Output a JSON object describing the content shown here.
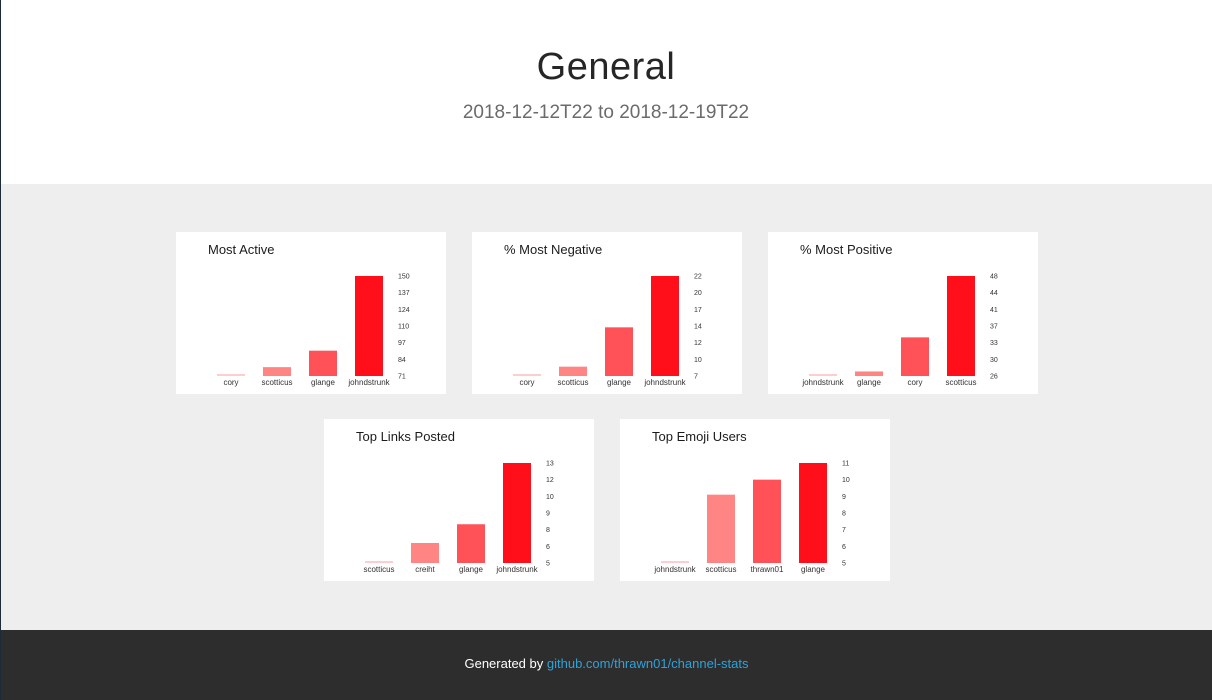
{
  "header": {
    "title": "General",
    "date_range": "2018-12-12T22 to 2018-12-19T22"
  },
  "colors": {
    "rank1": "#fecdd0",
    "rank2": "#ff8585",
    "rank3": "#ff5158",
    "rank4": "#ff0f1a",
    "page_bg": "#eeeeee",
    "footer_bg": "#2d2d2d",
    "link": "#2ea2d8"
  },
  "chart_data": [
    {
      "type": "bar",
      "title": "Most Active",
      "categories": [
        "cory",
        "scotticus",
        "glange",
        "johndstrunk"
      ],
      "values": [
        72,
        78,
        91,
        150
      ],
      "ylim": [
        71,
        150
      ],
      "yticks": [
        "150",
        "137",
        "124",
        "110",
        "97",
        "84",
        "71"
      ],
      "xlabel": "",
      "ylabel": ""
    },
    {
      "type": "bar",
      "title": "% Most Negative",
      "categories": [
        "cory",
        "scotticus",
        "glange",
        "johndstrunk"
      ],
      "values": [
        7.3,
        8.4,
        14.3,
        22
      ],
      "ylim": [
        7,
        22
      ],
      "yticks": [
        "22",
        "20",
        "17",
        "14",
        "12",
        "10",
        "7"
      ],
      "xlabel": "",
      "ylabel": ""
    },
    {
      "type": "bar",
      "title": "% Most Positive",
      "categories": [
        "johndstrunk",
        "glange",
        "cory",
        "scotticus"
      ],
      "values": [
        26.3,
        27,
        34.5,
        48
      ],
      "ylim": [
        26,
        48
      ],
      "yticks": [
        "48",
        "44",
        "41",
        "37",
        "33",
        "30",
        "26"
      ],
      "xlabel": "",
      "ylabel": ""
    },
    {
      "type": "bar",
      "title": "Top Links Posted",
      "categories": [
        "scotticus",
        "creiht",
        "glange",
        "johndstrunk"
      ],
      "values": [
        5.1,
        6.6,
        8.1,
        13
      ],
      "ylim": [
        5,
        13
      ],
      "yticks": [
        "13",
        "12",
        "10",
        "9",
        "8",
        "6",
        "5"
      ],
      "xlabel": "",
      "ylabel": ""
    },
    {
      "type": "bar",
      "title": "Top Emoji Users",
      "categories": [
        "johndstrunk",
        "scotticus",
        "thrawn01",
        "glange"
      ],
      "values": [
        5.1,
        9.1,
        10,
        11
      ],
      "ylim": [
        5,
        11
      ],
      "yticks": [
        "11",
        "10",
        "9",
        "8",
        "7",
        "6",
        "5"
      ],
      "xlabel": "",
      "ylabel": ""
    }
  ],
  "footer": {
    "prefix": "Generated by",
    "link_text": "github.com/thrawn01/channel-stats"
  }
}
